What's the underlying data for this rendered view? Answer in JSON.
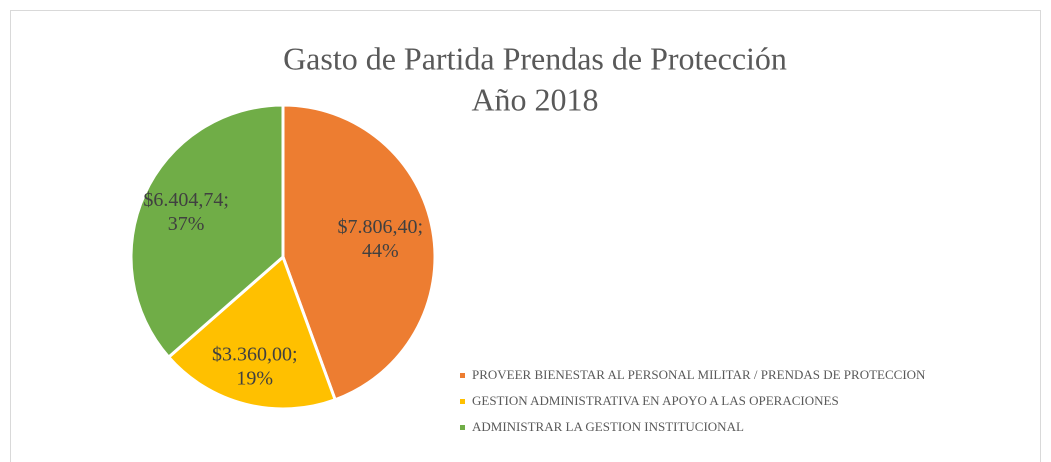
{
  "chart_data": {
    "type": "pie",
    "title": "Gasto de Partida Prendas de Protección",
    "subtitle": "Año 2018",
    "categories": [
      "PROVEER BIENESTAR AL PERSONAL MILITAR / PRENDAS DE PROTECCION",
      "GESTION ADMINISTRATIVA EN APOYO A LAS OPERACIONES",
      "ADMINISTRAR LA GESTION INSTITUCIONAL"
    ],
    "values": [
      7806.4,
      3360.0,
      6404.74
    ],
    "value_labels": [
      "$7.806,40; 44%",
      "$3.360,00; 19%",
      "$6.404,74; 37%"
    ],
    "colors": [
      "#ed7d31",
      "#ffc000",
      "#70ad47"
    ],
    "legend": "bottom-right"
  }
}
